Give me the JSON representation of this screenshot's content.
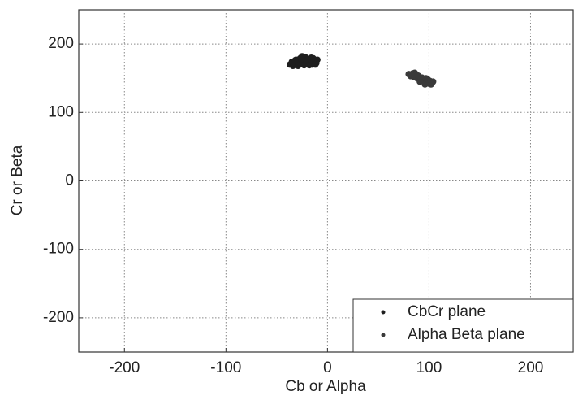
{
  "chart_data": {
    "type": "scatter",
    "x_label": "Cb or Alpha",
    "y_label": "Cr or Beta",
    "xlim": [
      -245,
      242
    ],
    "ylim": [
      -250,
      250
    ],
    "xticks": [
      -200,
      -100,
      0,
      100,
      200
    ],
    "yticks": [
      -200,
      -100,
      0,
      100,
      200
    ],
    "grid": true,
    "legend": "lower right",
    "series": [
      {
        "name": "CbCr plane",
        "color": "#1e1e1e",
        "x": [
          -37,
          -35,
          -33,
          -31,
          -30,
          -28,
          -27,
          -25,
          -24,
          -22,
          -21,
          -19,
          -18,
          -16,
          -15,
          -13,
          -12,
          -10,
          -34,
          -29,
          -26,
          -23,
          -20,
          -17,
          -14,
          -11,
          -32,
          -25,
          -18,
          -12
        ],
        "y": [
          170,
          174,
          172,
          177,
          170,
          175,
          179,
          172,
          176,
          181,
          171,
          178,
          174,
          180,
          170,
          176,
          173,
          177,
          168,
          168,
          178,
          169,
          175,
          171,
          179,
          172,
          176,
          182,
          169,
          170
        ]
      },
      {
        "name": "Alpha Beta plane",
        "color": "#3a3a3a",
        "x": [
          80,
          82,
          84,
          85,
          87,
          88,
          90,
          91,
          93,
          94,
          95,
          97,
          98,
          100,
          101,
          103,
          104,
          86,
          89,
          92,
          96,
          99,
          102,
          83,
          91,
          97
        ],
        "y": [
          156,
          153,
          157,
          152,
          155,
          150,
          153,
          148,
          151,
          146,
          149,
          144,
          147,
          142,
          146,
          143,
          145,
          158,
          154,
          150,
          141,
          148,
          141,
          154,
          145,
          150
        ]
      }
    ]
  }
}
